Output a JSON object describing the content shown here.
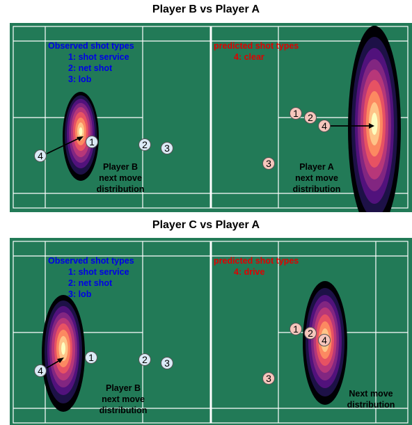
{
  "panels": [
    {
      "title": "Player B vs Player A",
      "observed_title": "Observed shot types",
      "observed_items": [
        "1: shot service",
        "2: net shot",
        "3: lob"
      ],
      "predicted_title": "predicted shot types",
      "predicted_items": [
        "4: clear"
      ],
      "left_label": [
        "Player B",
        "next move",
        "distribution"
      ],
      "right_label": [
        "Player A",
        "next move",
        "distribution"
      ],
      "markers": {
        "m4": "4",
        "m1": "1",
        "m2": "2",
        "m3": "3",
        "p1": "1",
        "p2": "2",
        "p4": "4",
        "p3": "3"
      }
    },
    {
      "title": "Player C vs Player A",
      "observed_title": "Observed shot types",
      "observed_items": [
        "1: shot service",
        "2: net shot",
        "3: lob"
      ],
      "predicted_title": "predicted shot types",
      "predicted_items": [
        "4: drive"
      ],
      "left_label": [
        "Player B",
        "next move",
        "distribution"
      ],
      "right_label": [
        "Next move",
        "distribution"
      ],
      "markers": {
        "m4": "4",
        "m1": "1",
        "m2": "2",
        "m3": "3",
        "p1": "1",
        "p2": "2",
        "p4": "4",
        "p3": "3"
      }
    }
  ],
  "colors": {
    "court": "#227a57",
    "lines": "#ffffff",
    "observed": "#0000e6",
    "predicted": "#e00000",
    "observed_marker": "#dbeaf6",
    "predicted_marker": "#f6c6bc",
    "density_ramp": [
      "#000004",
      "#1d1147",
      "#51127c",
      "#822681",
      "#b73779",
      "#e75263",
      "#fc8961",
      "#fec488",
      "#fcfdbf"
    ]
  }
}
